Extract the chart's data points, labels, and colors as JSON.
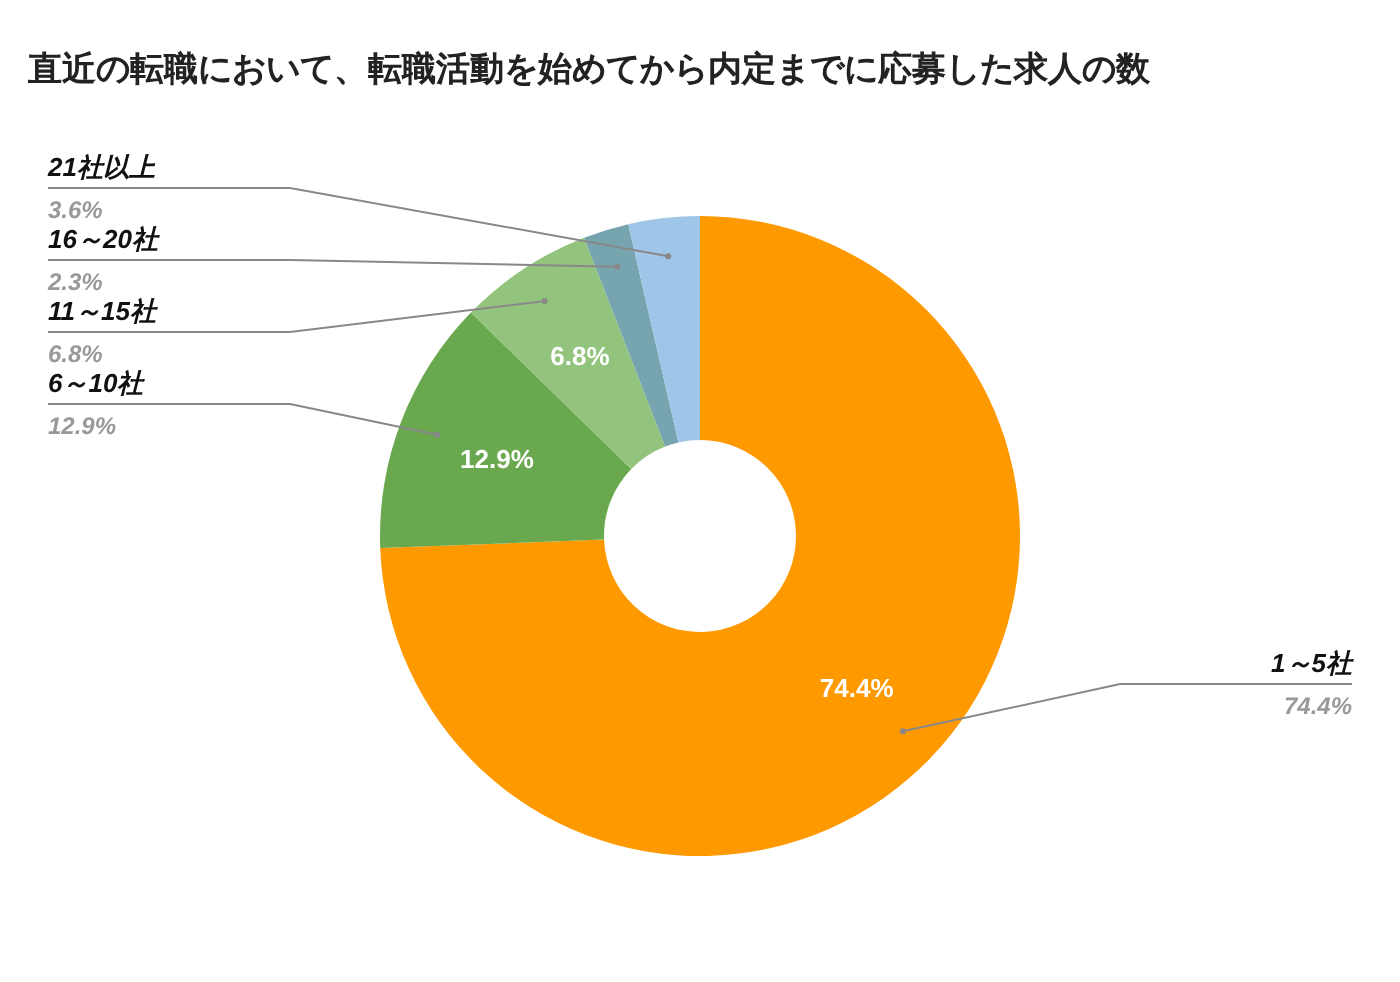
{
  "chart_data": {
    "type": "donut",
    "title": "直近の転職において、転職活動を始めてから内定までに応募した求人の数",
    "categories": [
      "1～5社",
      "6～10社",
      "11～15社",
      "16～20社",
      "21社以上"
    ],
    "values": [
      74.4,
      12.9,
      6.8,
      2.3,
      3.6
    ],
    "colors": [
      "#ff9900",
      "#6aa84f",
      "#93c47d",
      "#76a5af",
      "#9fc5e8"
    ],
    "value_labels": [
      "74.4%",
      "12.9%",
      "6.8%",
      "2.3%",
      "3.6%"
    ],
    "annotations": [
      {
        "text": "74.4%",
        "x": "1～5社"
      },
      {
        "text": "12.9%",
        "x": "6～10社"
      },
      {
        "text": "6.8%",
        "x": "11～15社"
      }
    ],
    "data_labels": true
  }
}
